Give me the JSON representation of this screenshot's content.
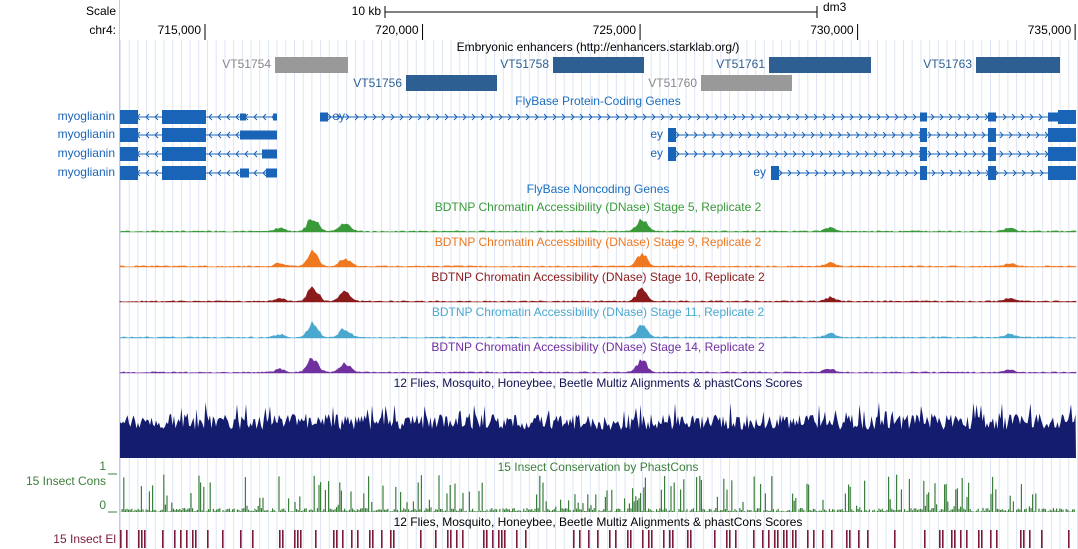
{
  "header": {
    "scale_label": "Scale",
    "chrom_label": "chr4:",
    "scale_bar": "10 kb",
    "assembly": "dm3",
    "xlim": [
      713046,
      735020
    ],
    "ruler": [
      {
        "value": 715000,
        "label": "715,000"
      },
      {
        "value": 720000,
        "label": "720,000"
      },
      {
        "value": 725000,
        "label": "725,000"
      },
      {
        "value": 730000,
        "label": "730,000"
      },
      {
        "value": 735000,
        "label": "735,000"
      }
    ]
  },
  "enhancers": {
    "title": "Embryonic enhancers (http://enhancers.starklab.org/)",
    "items": [
      "VT51754",
      "VT51756",
      "VT51758",
      "VT51760",
      "VT51761",
      "VT51763"
    ]
  },
  "genes": {
    "title": "FlyBase Protein-Coding Genes",
    "left": [
      "myoglianin",
      "myoglianin",
      "myoglianin",
      "myoglianin"
    ],
    "right": [
      "ey",
      "ey",
      "ey",
      "ey"
    ]
  },
  "noncoding": {
    "title": "FlyBase Noncoding Genes"
  },
  "dnase": [
    "BDTNP Chromatin Accessibility (DNase) Stage 5, Replicate 2",
    "BDTNP Chromatin Accessibility (DNase) Stage 9, Replicate 2",
    "BDTNP Chromatin Accessibility (DNase) Stage 10, Replicate 2",
    "BDTNP Chromatin Accessibility (DNase) Stage 11, Replicate 2",
    "BDTNP Chromatin Accessibility (DNase) Stage 14, Replicate 2"
  ],
  "multiz": {
    "title": "12 Flies, Mosquito, Honeybee, Beetle Multiz Alignments & phastCons Scores"
  },
  "phastcons": {
    "title": "15 Insect Conservation by PhastCons",
    "label": "15 Insect Cons",
    "yticks": [
      1,
      0
    ]
  },
  "elements": {
    "title": "12 Flies, Mosquito, Honeybee, Beetle Multiz Alignments & phastCons Scores",
    "label": "15 Insect El"
  }
}
